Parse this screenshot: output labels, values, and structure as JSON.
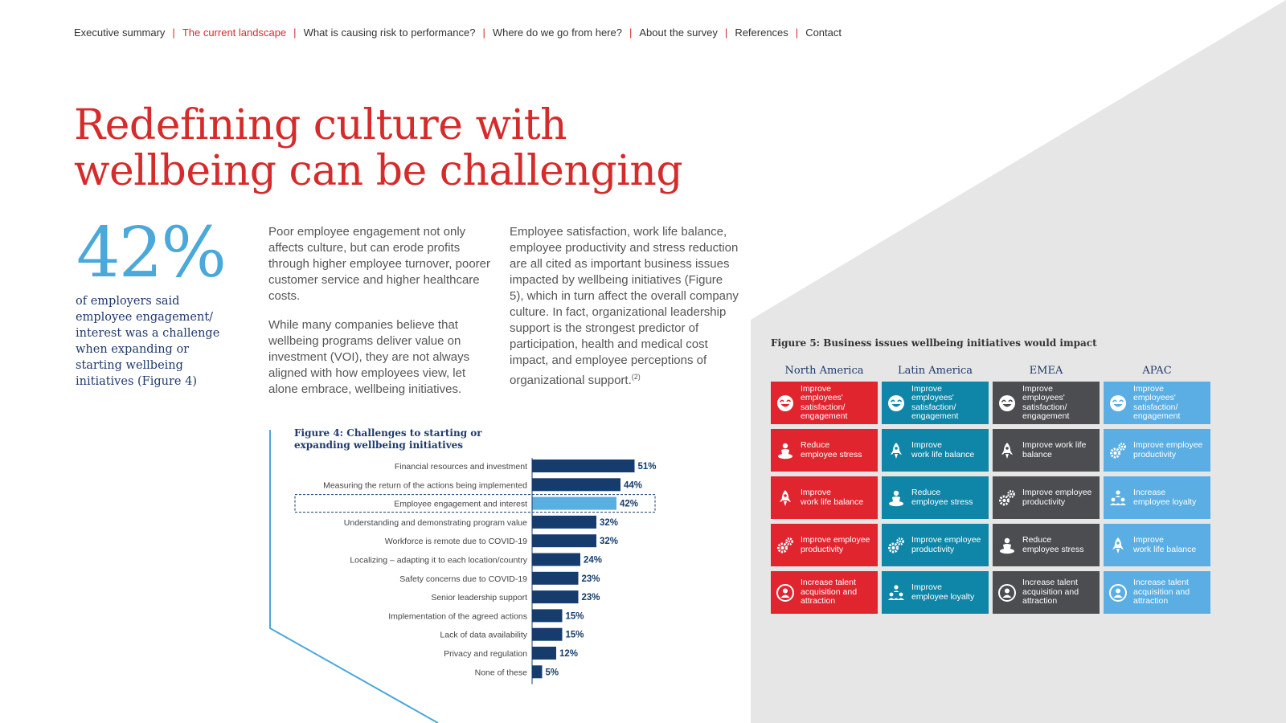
{
  "nav": {
    "items": [
      "Executive summary",
      "The current landscape",
      "What is causing risk to performance?",
      "Where do we go from here?",
      "About the survey",
      "References",
      "Contact"
    ],
    "active_index": 1
  },
  "title": {
    "line1": "Redefining culture with",
    "line2": "wellbeing can be challenging"
  },
  "stat": {
    "value": "42%",
    "caption": "of employers said employee engagement/ interest was a challenge when expanding or starting wellbeing initiatives (Figure 4)"
  },
  "body": {
    "col1_p1": "Poor employee engagement not only affects culture, but can erode profits through higher employee turnover, poorer customer service and higher healthcare costs.",
    "col1_p2": "While many companies believe that wellbeing programs deliver value on investment (VOI), they are not always aligned with how employees view, let alone embrace, wellbeing initiatives.",
    "col2_p1": "Employee satisfaction, work life balance, employee productivity and stress reduction are all cited as important business issues impacted by wellbeing initiatives (Figure 5), which in turn affect the overall company culture. In fact, organizational leadership support is the strongest predictor of participation, health and medical cost impact, and employee perceptions of organizational support.",
    "col2_ref": "(2)"
  },
  "colors": {
    "brand_red": "#d52b2b",
    "navy": "#1f3a6b",
    "light_blue": "#4aa8da",
    "bar_dark": "#163c6e",
    "bar_highlight": "#5baee0",
    "tile_red": "#e0252f",
    "tile_teal": "#0f86a8",
    "tile_gray": "#4b4d50",
    "tile_sky": "#5aaee3",
    "bg_gray": "#e6e6e6"
  },
  "figure4": {
    "title": "Figure 4: Challenges to starting or expanding wellbeing initiatives"
  },
  "chart_data": {
    "type": "bar",
    "orientation": "horizontal",
    "categories": [
      "Financial resources and investment",
      "Measuring the return of the actions being implemented",
      "Employee engagement and interest",
      "Understanding and demonstrating program value",
      "Workforce is remote due to COVID-19",
      "Localizing – adapting it to each location/country",
      "Safety concerns due to COVID-19",
      "Senior leadership support",
      "Implementation of the agreed actions",
      "Lack of data availability",
      "Privacy and regulation",
      "None of these"
    ],
    "values": [
      51,
      44,
      42,
      32,
      32,
      24,
      23,
      23,
      15,
      15,
      12,
      5
    ],
    "value_labels": [
      "51%",
      "44%",
      "42%",
      "32%",
      "32%",
      "24%",
      "23%",
      "23%",
      "15%",
      "15%",
      "12%",
      "5%"
    ],
    "highlight_index": 2,
    "unit": "%",
    "grid": false
  },
  "figure5": {
    "title": "Figure 5: Business issues wellbeing initiatives would impact",
    "regions": [
      {
        "name": "North America",
        "color": "#e0252f",
        "tiles": [
          {
            "icon": "smiley-icon",
            "label": "Improve employees'\nsatisfaction/\nengagement"
          },
          {
            "icon": "meditation-icon",
            "label": "Reduce\nemployee stress"
          },
          {
            "icon": "rocket-icon",
            "label": "Improve\nwork life balance"
          },
          {
            "icon": "gears-icon",
            "label": "Improve employee\nproductivity"
          },
          {
            "icon": "talent-icon",
            "label": "Increase talent\nacquisition and\nattraction"
          }
        ]
      },
      {
        "name": "Latin America",
        "color": "#0f86a8",
        "tiles": [
          {
            "icon": "smiley-icon",
            "label": "Improve employees'\nsatisfaction/\nengagement"
          },
          {
            "icon": "rocket-icon",
            "label": "Improve\nwork life balance"
          },
          {
            "icon": "meditation-icon",
            "label": "Reduce\nemployee stress"
          },
          {
            "icon": "gears-icon",
            "label": "Improve employee\nproductivity"
          },
          {
            "icon": "team-icon",
            "label": "Improve\nemployee loyalty"
          }
        ]
      },
      {
        "name": "EMEA",
        "color": "#4b4d50",
        "tiles": [
          {
            "icon": "smiley-icon",
            "label": "Improve employees'\nsatisfaction/\nengagement"
          },
          {
            "icon": "rocket-icon",
            "label": "Improve work life\nbalance"
          },
          {
            "icon": "gears-icon",
            "label": "Improve employee\nproductivity"
          },
          {
            "icon": "meditation-icon",
            "label": "Reduce\nemployee stress"
          },
          {
            "icon": "talent-icon",
            "label": "Increase talent\nacquisition and\nattraction"
          }
        ]
      },
      {
        "name": "APAC",
        "color": "#5aaee3",
        "tiles": [
          {
            "icon": "smiley-icon",
            "label": "Improve employees'\nsatisfaction/\nengagement"
          },
          {
            "icon": "gears-icon",
            "label": "Improve employee\nproductivity"
          },
          {
            "icon": "team-icon",
            "label": "Increase\nemployee loyalty"
          },
          {
            "icon": "rocket-icon",
            "label": "Improve\nwork life balance"
          },
          {
            "icon": "talent-icon",
            "label": "Increase talent\nacquisition and\nattraction"
          }
        ]
      }
    ]
  }
}
